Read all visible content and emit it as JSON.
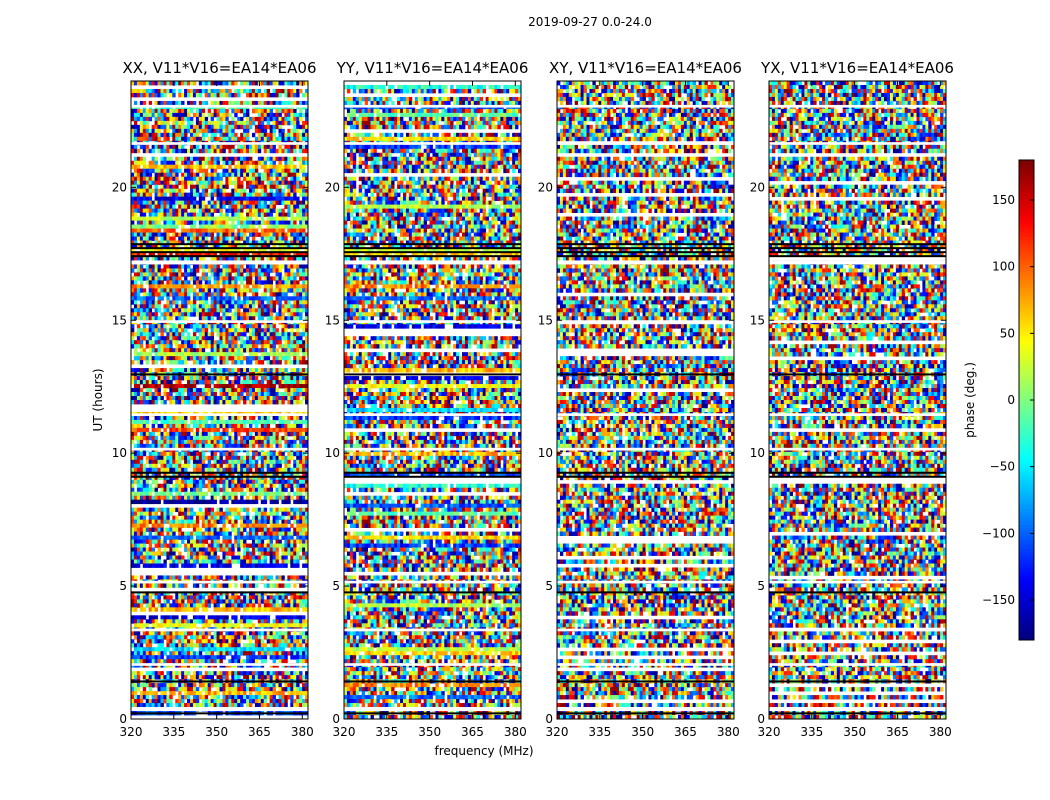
{
  "chart_data": {
    "type": "heatmap",
    "suptitle": "2019-09-27 0.0-24.0",
    "xlabel": "frequency (MHz)",
    "ylabel": "UT (hours)",
    "xlim": [
      320,
      382
    ],
    "ylim": [
      0,
      24
    ],
    "xticks": [
      320,
      335,
      350,
      365,
      380
    ],
    "yticks": [
      0,
      5,
      10,
      15,
      20
    ],
    "panels": [
      {
        "title": "XX, V11*V16=EA14*EA06"
      },
      {
        "title": "YY, V11*V16=EA14*EA06"
      },
      {
        "title": "XY, V11*V16=EA14*EA06"
      },
      {
        "title": "YX, V11*V16=EA14*EA06"
      }
    ],
    "colorbar": {
      "label": "phase (deg.)",
      "range": [
        -180,
        180
      ],
      "ticks": [
        -150,
        -100,
        -50,
        0,
        50,
        100,
        150
      ],
      "colormap": "jet"
    },
    "flagged_black_bands_ut": [
      [
        0.1,
        0.25
      ],
      [
        1.3,
        1.45
      ],
      [
        4.7,
        4.8
      ],
      [
        9.1,
        9.3
      ],
      [
        12.9,
        13.0
      ],
      [
        17.3,
        17.9
      ]
    ],
    "flagged_white_bands_ut": [
      [
        0.3,
        0.45
      ],
      [
        2.0,
        2.1
      ],
      [
        3.3,
        3.4
      ],
      [
        5.1,
        5.2
      ],
      [
        10.1,
        10.2
      ],
      [
        11.4,
        11.5
      ],
      [
        14.9,
        15.0
      ],
      [
        17.1,
        17.25
      ],
      [
        21.6,
        21.7
      ],
      [
        23.0,
        23.1
      ]
    ]
  }
}
